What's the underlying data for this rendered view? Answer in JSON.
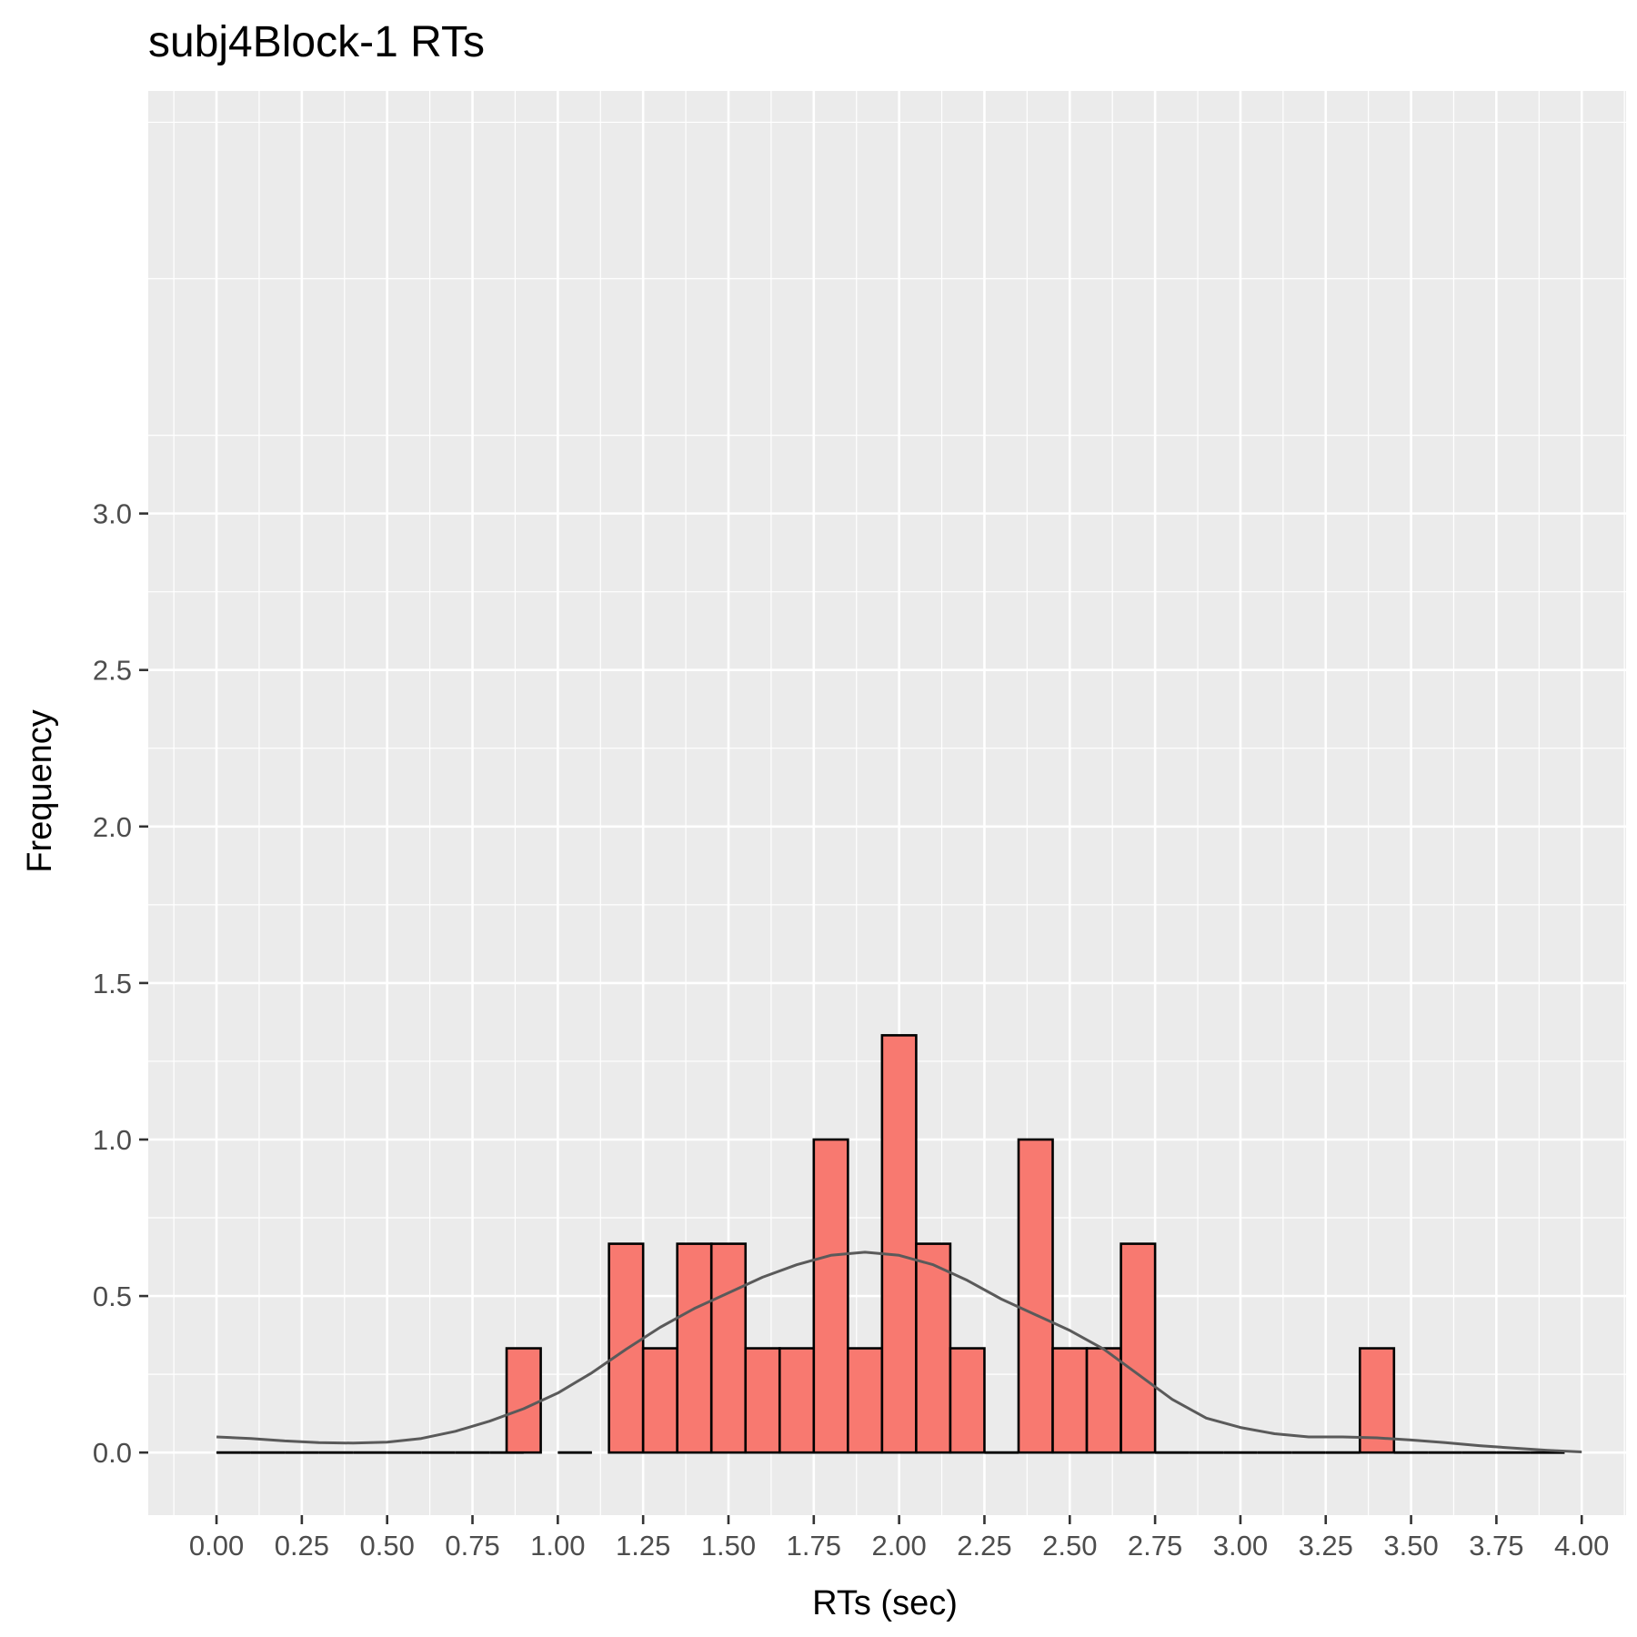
{
  "chart_data": {
    "type": "bar",
    "title": "subj4Block-1 RTs",
    "xlabel": "RTs (sec)",
    "ylabel": "Frequency",
    "xlim": [
      -0.2,
      4.13
    ],
    "ylim": [
      -0.2,
      4.35
    ],
    "x_ticks": [
      "0.00",
      "0.25",
      "0.50",
      "0.75",
      "1.00",
      "1.25",
      "1.50",
      "1.75",
      "2.00",
      "2.25",
      "2.50",
      "2.75",
      "3.00",
      "3.25",
      "3.50",
      "3.75",
      "4.00"
    ],
    "y_ticks": [
      "0.0",
      "0.5",
      "1.0",
      "1.5",
      "2.0",
      "2.5",
      "3.0"
    ],
    "bin_width": 0.1,
    "bars": [
      {
        "x": 0.05,
        "value": 0
      },
      {
        "x": 0.15,
        "value": 0
      },
      {
        "x": 0.25,
        "value": 0
      },
      {
        "x": 0.35,
        "value": 0
      },
      {
        "x": 0.45,
        "value": 0
      },
      {
        "x": 0.55,
        "value": 0
      },
      {
        "x": 0.65,
        "value": 0
      },
      {
        "x": 0.75,
        "value": 0
      },
      {
        "x": 0.85,
        "value": 0
      },
      {
        "x": 0.9,
        "value": 0.333
      },
      {
        "x": 1.05,
        "value": 0
      },
      {
        "x": 1.2,
        "value": 0.667
      },
      {
        "x": 1.3,
        "value": 0.333
      },
      {
        "x": 1.4,
        "value": 0.667
      },
      {
        "x": 1.5,
        "value": 0.667
      },
      {
        "x": 1.6,
        "value": 0.333
      },
      {
        "x": 1.7,
        "value": 0.333
      },
      {
        "x": 1.8,
        "value": 1.0
      },
      {
        "x": 1.9,
        "value": 0.333
      },
      {
        "x": 2.0,
        "value": 1.333
      },
      {
        "x": 2.1,
        "value": 0.667
      },
      {
        "x": 2.2,
        "value": 0.333
      },
      {
        "x": 2.3,
        "value": 0
      },
      {
        "x": 2.4,
        "value": 1.0
      },
      {
        "x": 2.5,
        "value": 0.333
      },
      {
        "x": 2.6,
        "value": 0.333
      },
      {
        "x": 2.7,
        "value": 0.667
      },
      {
        "x": 2.8,
        "value": 0
      },
      {
        "x": 2.9,
        "value": 0
      },
      {
        "x": 3.0,
        "value": 0
      },
      {
        "x": 3.1,
        "value": 0
      },
      {
        "x": 3.2,
        "value": 0
      },
      {
        "x": 3.3,
        "value": 0
      },
      {
        "x": 3.4,
        "value": 0.333
      },
      {
        "x": 3.5,
        "value": 0
      },
      {
        "x": 3.6,
        "value": 0
      },
      {
        "x": 3.7,
        "value": 0
      },
      {
        "x": 3.8,
        "value": 0
      },
      {
        "x": 3.9,
        "value": 0
      }
    ],
    "density": {
      "x": [
        0.0,
        0.1,
        0.2,
        0.3,
        0.4,
        0.5,
        0.6,
        0.7,
        0.8,
        0.9,
        1.0,
        1.1,
        1.2,
        1.3,
        1.4,
        1.5,
        1.6,
        1.7,
        1.8,
        1.9,
        2.0,
        2.1,
        2.2,
        2.3,
        2.4,
        2.5,
        2.6,
        2.7,
        2.8,
        2.9,
        3.0,
        3.1,
        3.2,
        3.3,
        3.4,
        3.5,
        3.6,
        3.7,
        3.8,
        3.9,
        4.0
      ],
      "y": [
        0.05,
        0.045,
        0.037,
        0.032,
        0.03,
        0.033,
        0.045,
        0.068,
        0.1,
        0.14,
        0.19,
        0.255,
        0.33,
        0.4,
        0.46,
        0.51,
        0.56,
        0.6,
        0.63,
        0.64,
        0.63,
        0.6,
        0.55,
        0.49,
        0.44,
        0.39,
        0.33,
        0.25,
        0.17,
        0.11,
        0.08,
        0.06,
        0.05,
        0.05,
        0.047,
        0.04,
        0.032,
        0.022,
        0.014,
        0.007,
        0.002
      ]
    },
    "colors": {
      "panel": "#ebebeb",
      "grid": "#ffffff",
      "bar_fill": "#f8766d",
      "bar_stroke": "#000000",
      "density_line": "#5a5a5a"
    },
    "grid": true
  }
}
